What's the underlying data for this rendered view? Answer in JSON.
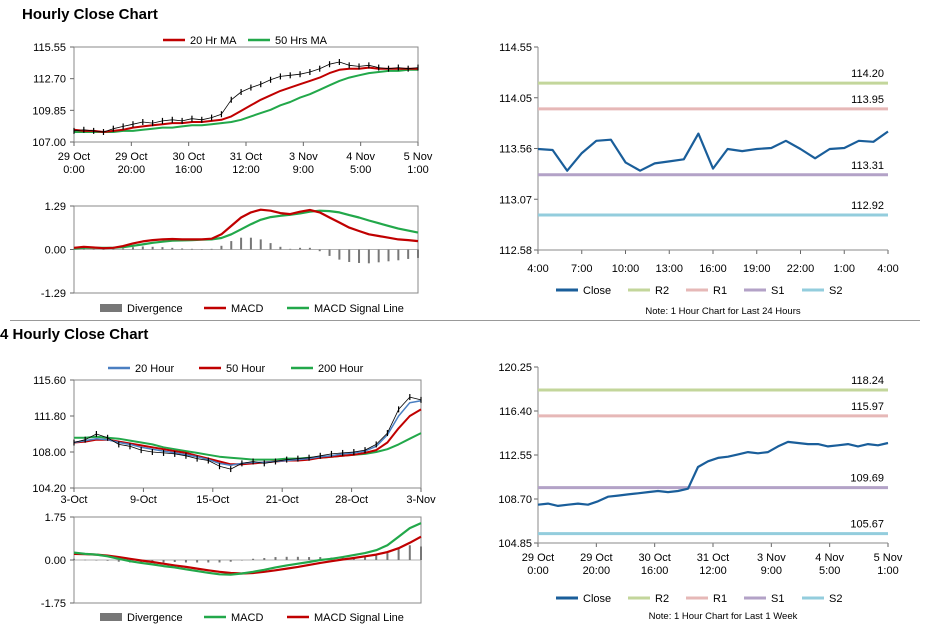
{
  "titles": {
    "hourly": "Hourly Close Chart",
    "four_hourly": "4 Hourly Close Chart"
  },
  "colors": {
    "close": "#1a5e9a",
    "ma20": "#c00000",
    "ma50": "#22a84a",
    "ma20b": "#4a7fc1",
    "r2": "#c3d69b",
    "r1": "#e6b8b7",
    "s1": "#b3a2c7",
    "s2": "#93cddd",
    "hist": "#777777"
  },
  "chart_data": [
    {
      "id": "hourly_price",
      "type": "line",
      "title": "Hourly Close Chart",
      "legend": [
        "20 Hr MA",
        "50 Hrs MA"
      ],
      "ylim": [
        107.0,
        115.55
      ],
      "yticks": [
        "115.55",
        "112.70",
        "109.85",
        "107.00"
      ],
      "xticks": [
        [
          "29 Oct",
          "0:00"
        ],
        [
          "29 Oct",
          "20:00"
        ],
        [
          "30 Oct",
          "16:00"
        ],
        [
          "31 Oct",
          "12:00"
        ],
        [
          "3 Nov",
          "9:00"
        ],
        [
          "4 Nov",
          "5:00"
        ],
        [
          "5 Nov",
          "1:00"
        ]
      ],
      "close": [
        108.0,
        108.1,
        108.0,
        107.9,
        108.2,
        108.4,
        108.6,
        108.8,
        108.7,
        108.9,
        109.0,
        108.9,
        109.1,
        109.0,
        109.2,
        109.5,
        110.8,
        111.5,
        111.9,
        112.2,
        112.6,
        112.9,
        113.0,
        113.1,
        113.3,
        113.6,
        114.0,
        114.2,
        113.9,
        113.8,
        113.9,
        113.7,
        113.6,
        113.7,
        113.6,
        113.7
      ],
      "series": [
        {
          "name": "20 Hr MA",
          "values": [
            108.1,
            108.0,
            108.0,
            107.9,
            108.0,
            108.1,
            108.3,
            108.4,
            108.5,
            108.6,
            108.7,
            108.7,
            108.8,
            108.8,
            108.9,
            109.0,
            109.3,
            109.8,
            110.3,
            110.8,
            111.2,
            111.6,
            111.9,
            112.2,
            112.5,
            112.8,
            113.2,
            113.5,
            113.6,
            113.6,
            113.7,
            113.6,
            113.6,
            113.6,
            113.6,
            113.6
          ]
        },
        {
          "name": "50 Hrs MA",
          "values": [
            107.9,
            107.9,
            107.9,
            107.9,
            107.9,
            108.0,
            108.0,
            108.1,
            108.2,
            108.3,
            108.3,
            108.4,
            108.5,
            108.5,
            108.6,
            108.7,
            108.8,
            109.0,
            109.3,
            109.6,
            109.9,
            110.3,
            110.6,
            111.0,
            111.3,
            111.7,
            112.1,
            112.5,
            112.8,
            113.0,
            113.2,
            113.3,
            113.4,
            113.4,
            113.5,
            113.5
          ]
        }
      ]
    },
    {
      "id": "hourly_macd",
      "type": "line",
      "legend": [
        "Divergence",
        "MACD",
        "MACD Signal Line"
      ],
      "ylim": [
        -1.29,
        1.29
      ],
      "yticks": [
        "1.29",
        "0.00",
        "-1.29"
      ],
      "series": [
        {
          "name": "MACD",
          "values": [
            0.05,
            0.08,
            0.06,
            0.04,
            0.05,
            0.1,
            0.18,
            0.24,
            0.28,
            0.3,
            0.31,
            0.3,
            0.3,
            0.3,
            0.32,
            0.45,
            0.7,
            0.95,
            1.1,
            1.18,
            1.15,
            1.08,
            1.05,
            1.12,
            1.17,
            1.1,
            0.95,
            0.8,
            0.65,
            0.55,
            0.45,
            0.4,
            0.35,
            0.3,
            0.28,
            0.25
          ]
        },
        {
          "name": "MACD Signal Line",
          "values": [
            0.03,
            0.05,
            0.05,
            0.05,
            0.05,
            0.07,
            0.11,
            0.15,
            0.2,
            0.23,
            0.26,
            0.27,
            0.28,
            0.29,
            0.3,
            0.34,
            0.45,
            0.6,
            0.75,
            0.88,
            0.96,
            1.0,
            1.03,
            1.07,
            1.12,
            1.15,
            1.14,
            1.1,
            1.02,
            0.95,
            0.86,
            0.78,
            0.7,
            0.62,
            0.56,
            0.5
          ]
        },
        {
          "name": "Divergence",
          "values": [
            0.02,
            0.03,
            0.01,
            -0.01,
            0.0,
            0.03,
            0.07,
            0.09,
            0.08,
            0.07,
            0.05,
            0.03,
            0.02,
            0.01,
            0.02,
            0.11,
            0.25,
            0.35,
            0.35,
            0.3,
            0.19,
            0.08,
            0.02,
            0.05,
            0.05,
            -0.05,
            -0.19,
            -0.3,
            -0.37,
            -0.4,
            -0.41,
            -0.38,
            -0.35,
            -0.32,
            -0.28,
            -0.25
          ]
        }
      ]
    },
    {
      "id": "hourly_24h",
      "type": "line",
      "legend": [
        "Close",
        "R2",
        "R1",
        "S1",
        "S2"
      ],
      "note": "Note: 1 Hour Chart for Last 24 Hours",
      "ylim": [
        112.58,
        114.55
      ],
      "yticks": [
        "114.55",
        "114.05",
        "113.56",
        "113.07",
        "112.58"
      ],
      "xticks": [
        "4:00",
        "7:00",
        "10:00",
        "13:00",
        "16:00",
        "19:00",
        "22:00",
        "1:00",
        "4:00"
      ],
      "levels": [
        {
          "name": "R2",
          "value": 114.2,
          "label": "114.20"
        },
        {
          "name": "R1",
          "value": 113.95,
          "label": "113.95"
        },
        {
          "name": "S1",
          "value": 113.31,
          "label": "113.31"
        },
        {
          "name": "S2",
          "value": 112.92,
          "label": "112.92"
        }
      ],
      "close": [
        113.56,
        113.55,
        113.35,
        113.52,
        113.64,
        113.65,
        113.43,
        113.35,
        113.42,
        113.44,
        113.46,
        113.71,
        113.37,
        113.56,
        113.54,
        113.56,
        113.57,
        113.64,
        113.56,
        113.47,
        113.56,
        113.57,
        113.64,
        113.63,
        113.73
      ]
    },
    {
      "id": "four_hourly_price",
      "type": "line",
      "title": "4 Hourly Close Chart",
      "legend": [
        "20 Hour",
        "50 Hour",
        "200 Hour"
      ],
      "ylim": [
        104.2,
        115.6
      ],
      "yticks": [
        "115.60",
        "111.80",
        "108.00",
        "104.20"
      ],
      "xticks": [
        "3-Oct",
        "9-Oct",
        "15-Oct",
        "21-Oct",
        "28-Oct",
        "3-Nov"
      ],
      "close": [
        109.0,
        109.3,
        109.9,
        109.5,
        108.8,
        108.6,
        108.2,
        108.0,
        107.9,
        107.8,
        107.6,
        107.3,
        107.1,
        106.5,
        106.2,
        106.8,
        107.0,
        106.8,
        107.0,
        107.2,
        107.3,
        107.4,
        107.6,
        107.8,
        107.9,
        108.0,
        108.2,
        108.8,
        110.0,
        112.5,
        113.8,
        113.5
      ],
      "series": [
        {
          "name": "20 Hour",
          "values": [
            109.0,
            109.2,
            109.4,
            109.3,
            109.0,
            108.8,
            108.5,
            108.3,
            108.1,
            107.9,
            107.7,
            107.5,
            107.2,
            106.8,
            106.6,
            106.8,
            106.9,
            106.9,
            107.0,
            107.1,
            107.2,
            107.3,
            107.5,
            107.6,
            107.8,
            107.9,
            108.1,
            108.6,
            109.8,
            111.8,
            113.2,
            113.4
          ]
        },
        {
          "name": "50 Hour",
          "values": [
            109.0,
            109.1,
            109.3,
            109.3,
            109.1,
            108.9,
            108.7,
            108.5,
            108.3,
            108.1,
            107.9,
            107.6,
            107.3,
            107.0,
            106.7,
            106.7,
            106.8,
            106.9,
            107.0,
            107.1,
            107.1,
            107.2,
            107.4,
            107.5,
            107.6,
            107.7,
            107.9,
            108.2,
            109.0,
            110.5,
            111.8,
            112.5
          ]
        },
        {
          "name": "200 Hour",
          "values": [
            109.5,
            109.5,
            109.6,
            109.5,
            109.4,
            109.2,
            109.0,
            108.8,
            108.5,
            108.3,
            108.1,
            107.9,
            107.7,
            107.5,
            107.4,
            107.3,
            107.2,
            107.2,
            107.2,
            107.3,
            107.3,
            107.4,
            107.4,
            107.5,
            107.6,
            107.7,
            107.8,
            108.0,
            108.3,
            108.8,
            109.4,
            110.0
          ]
        }
      ]
    },
    {
      "id": "four_hourly_macd",
      "type": "line",
      "legend": [
        "Divergence",
        "MACD",
        "MACD Signal Line"
      ],
      "ylim": [
        -1.75,
        1.75
      ],
      "yticks": [
        "1.75",
        "0.00",
        "-1.75"
      ],
      "series": [
        {
          "name": "MACD",
          "values": [
            0.3,
            0.25,
            0.22,
            0.15,
            0.05,
            -0.05,
            -0.12,
            -0.18,
            -0.25,
            -0.3,
            -0.38,
            -0.45,
            -0.52,
            -0.58,
            -0.6,
            -0.55,
            -0.48,
            -0.4,
            -0.3,
            -0.22,
            -0.15,
            -0.08,
            0.0,
            0.05,
            0.12,
            0.2,
            0.28,
            0.4,
            0.6,
            0.95,
            1.3,
            1.5
          ]
        },
        {
          "name": "MACD Signal Line",
          "values": [
            0.25,
            0.24,
            0.22,
            0.18,
            0.12,
            0.05,
            -0.02,
            -0.08,
            -0.15,
            -0.22,
            -0.28,
            -0.35,
            -0.42,
            -0.48,
            -0.53,
            -0.55,
            -0.53,
            -0.48,
            -0.42,
            -0.35,
            -0.28,
            -0.2,
            -0.12,
            -0.05,
            0.02,
            0.08,
            0.15,
            0.22,
            0.32,
            0.48,
            0.7,
            0.95
          ]
        },
        {
          "name": "Divergence",
          "values": [
            0.05,
            0.01,
            0.0,
            -0.03,
            -0.07,
            -0.1,
            -0.1,
            -0.1,
            -0.1,
            -0.08,
            -0.1,
            -0.1,
            -0.1,
            -0.1,
            -0.07,
            0.0,
            0.05,
            0.08,
            0.12,
            0.13,
            0.13,
            0.12,
            0.12,
            0.1,
            0.1,
            0.12,
            0.13,
            0.18,
            0.28,
            0.47,
            0.6,
            0.55
          ]
        }
      ]
    },
    {
      "id": "four_hourly_week",
      "type": "line",
      "legend": [
        "Close",
        "R2",
        "R1",
        "S1",
        "S2"
      ],
      "note": "Note: 1 Hour Chart for Last 1 Week",
      "ylim": [
        104.85,
        120.25
      ],
      "yticks": [
        "120.25",
        "116.40",
        "112.55",
        "108.70",
        "104.85"
      ],
      "xticks": [
        [
          "29 Oct",
          "0:00"
        ],
        [
          "29 Oct",
          "20:00"
        ],
        [
          "30 Oct",
          "16:00"
        ],
        [
          "31 Oct",
          "12:00"
        ],
        [
          "3 Nov",
          "9:00"
        ],
        [
          "4 Nov",
          "5:00"
        ],
        [
          "5 Nov",
          "1:00"
        ]
      ],
      "levels": [
        {
          "name": "R2",
          "value": 118.24,
          "label": "118.24"
        },
        {
          "name": "R1",
          "value": 115.97,
          "label": "115.97"
        },
        {
          "name": "S1",
          "value": 109.69,
          "label": "109.69"
        },
        {
          "name": "S2",
          "value": 105.67,
          "label": "105.67"
        }
      ],
      "close": [
        108.2,
        108.3,
        108.1,
        108.2,
        108.3,
        108.2,
        108.5,
        108.9,
        109.0,
        109.1,
        109.2,
        109.3,
        109.4,
        109.3,
        109.4,
        109.6,
        111.5,
        112.0,
        112.3,
        112.4,
        112.6,
        112.8,
        112.7,
        112.8,
        113.3,
        113.7,
        113.6,
        113.5,
        113.5,
        113.3,
        113.4,
        113.5,
        113.3,
        113.5,
        113.4,
        113.6
      ]
    }
  ]
}
